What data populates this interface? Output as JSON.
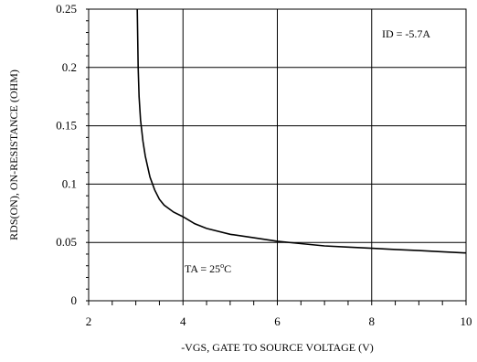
{
  "chart_data": {
    "type": "line",
    "xlabel": "-VGS, GATE TO SOURCE VOLTAGE (V)",
    "ylabel": "RDS(ON), ON-RESISTANCE (OHM)",
    "xlim": [
      2,
      10
    ],
    "ylim": [
      0,
      0.25
    ],
    "grid": true,
    "x_ticks": [
      2,
      4,
      6,
      8,
      10
    ],
    "x_tick_labels": [
      "2",
      "4",
      "6",
      "8",
      "10"
    ],
    "y_ticks": [
      0,
      0.05,
      0.1,
      0.15,
      0.2,
      0.25
    ],
    "y_tick_labels": [
      "0",
      "0.05",
      "0.1",
      "0.15",
      "0.2",
      "0.25"
    ],
    "annotations": {
      "id_label": "ID = -5.7A",
      "ta_label_prefix": "TA = 25",
      "ta_label_sup": "o",
      "ta_label_suffix": "C"
    },
    "series": [
      {
        "x": [
          3.03,
          3.05,
          3.07,
          3.1,
          3.15,
          3.2,
          3.3,
          3.4,
          3.5,
          3.6,
          3.8,
          4.0,
          4.25,
          4.5,
          5.0,
          5.5,
          6.0,
          6.5,
          7.0,
          7.5,
          8.0,
          8.5,
          9.0,
          9.5,
          10.0
        ],
        "y": [
          0.25,
          0.2,
          0.175,
          0.155,
          0.137,
          0.124,
          0.106,
          0.095,
          0.087,
          0.082,
          0.076,
          0.072,
          0.066,
          0.062,
          0.057,
          0.054,
          0.051,
          0.049,
          0.047,
          0.046,
          0.045,
          0.044,
          0.043,
          0.042,
          0.041
        ]
      }
    ]
  }
}
